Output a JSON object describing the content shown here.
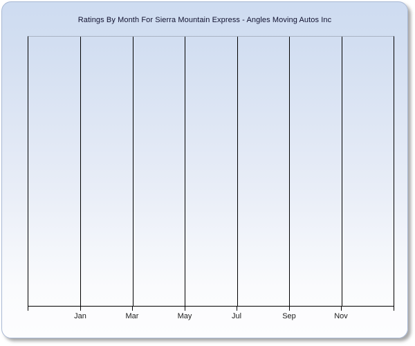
{
  "chart_data": {
    "type": "line",
    "title": "Ratings By Month For Sierra Mountain Express - Angles Moving Autos Inc",
    "xlabel": "",
    "ylabel": "",
    "x_tick_labels": [
      "Jan",
      "Mar",
      "May",
      "Jul",
      "Sep",
      "Nov"
    ],
    "x_gridlines_total": 8,
    "grid": "vertical-only",
    "legend": "none",
    "series": [],
    "plot_is_empty": true
  },
  "colors": {
    "card_background_top": "#cedcf1",
    "card_background_bottom": "#fdfdfe",
    "card_border": "#a8b8d4",
    "card_shadow": "#6e6e6e",
    "plot_border_top": "#a9b2c2",
    "plot_border": "#000000",
    "gridline": "#000000",
    "title_text": "#10102e",
    "axis_label_text": "#1a1a1a"
  }
}
